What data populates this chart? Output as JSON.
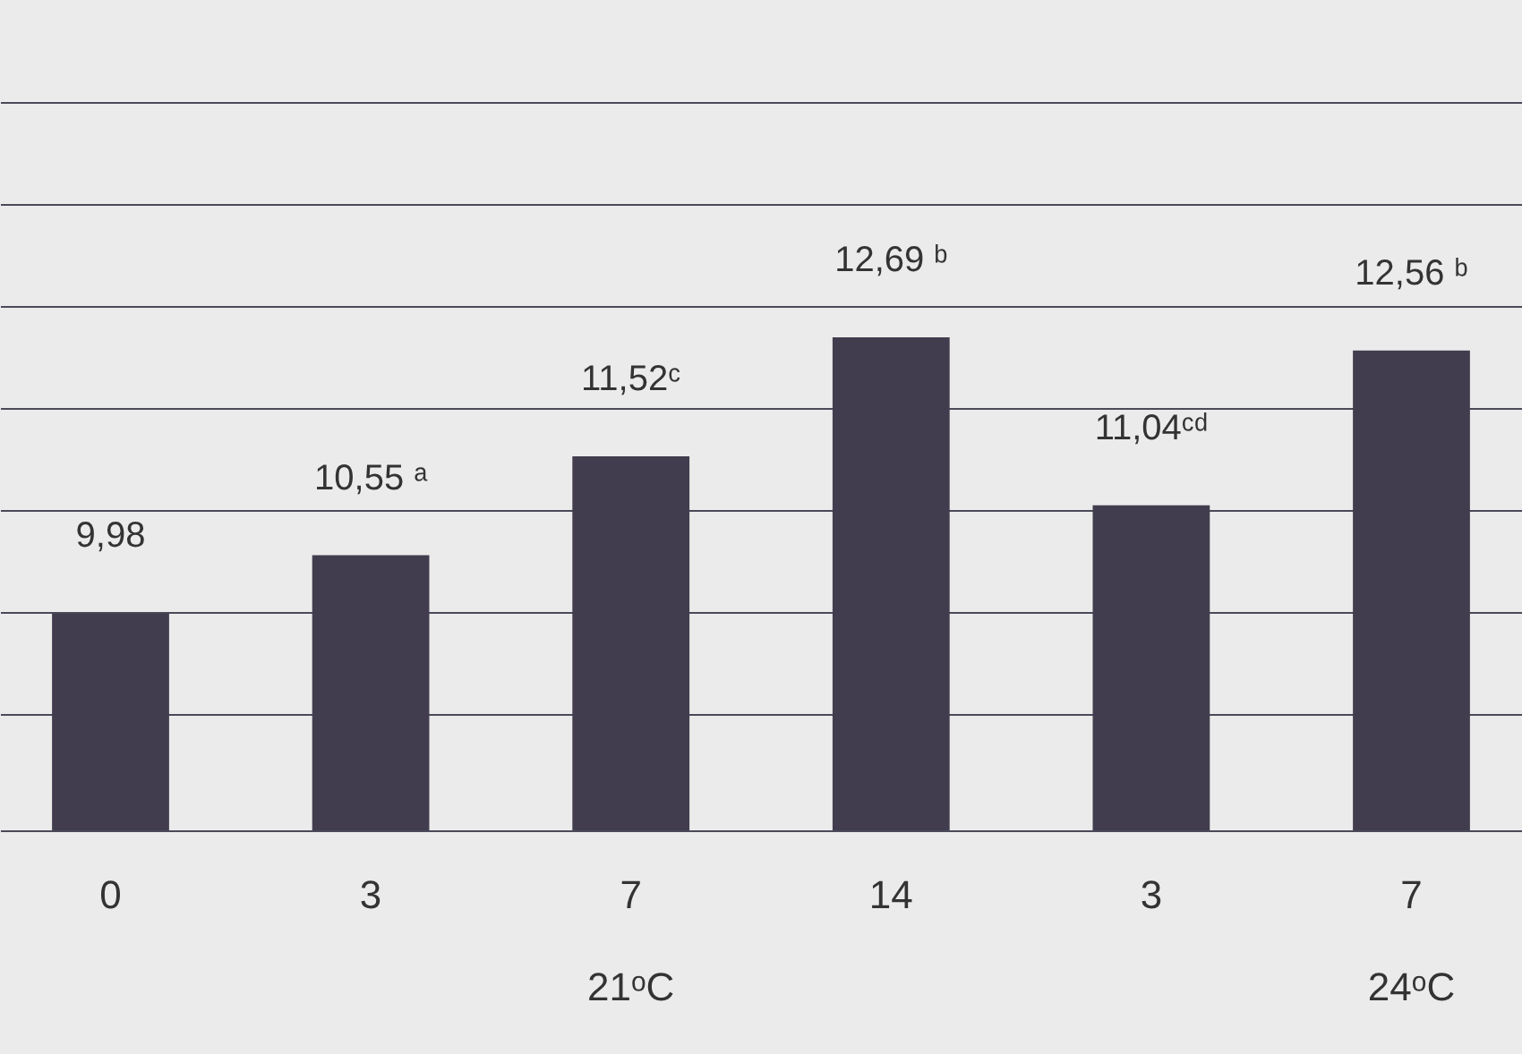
{
  "chart_data": {
    "type": "bar",
    "categories": [
      "0",
      "3",
      "7",
      "14",
      "3",
      "7"
    ],
    "values": [
      9.98,
      10.55,
      11.52,
      12.69,
      11.04,
      12.56
    ],
    "value_labels": [
      "9,98",
      "10,55 ᵃ",
      "11,52ᶜ",
      "12,69 ᵇ",
      "11,04ᶜᵈ",
      "12,56 ᵇ"
    ],
    "color": "#423d4e",
    "ylim": [
      7.85,
      16
    ],
    "yticks": [
      {
        "value": 9,
        "label": null
      },
      {
        "value": 10,
        "label": null
      },
      {
        "value": 11,
        "label": null
      },
      {
        "value": 12,
        "label": null
      },
      {
        "value": 13,
        "label": null
      },
      {
        "value": 14,
        "label": null
      },
      {
        "value": 15,
        "label": null
      }
    ],
    "grid": "y",
    "tick_labels": "x",
    "annotations": [
      "21ᵒC",
      "24ᵒC"
    ]
  }
}
